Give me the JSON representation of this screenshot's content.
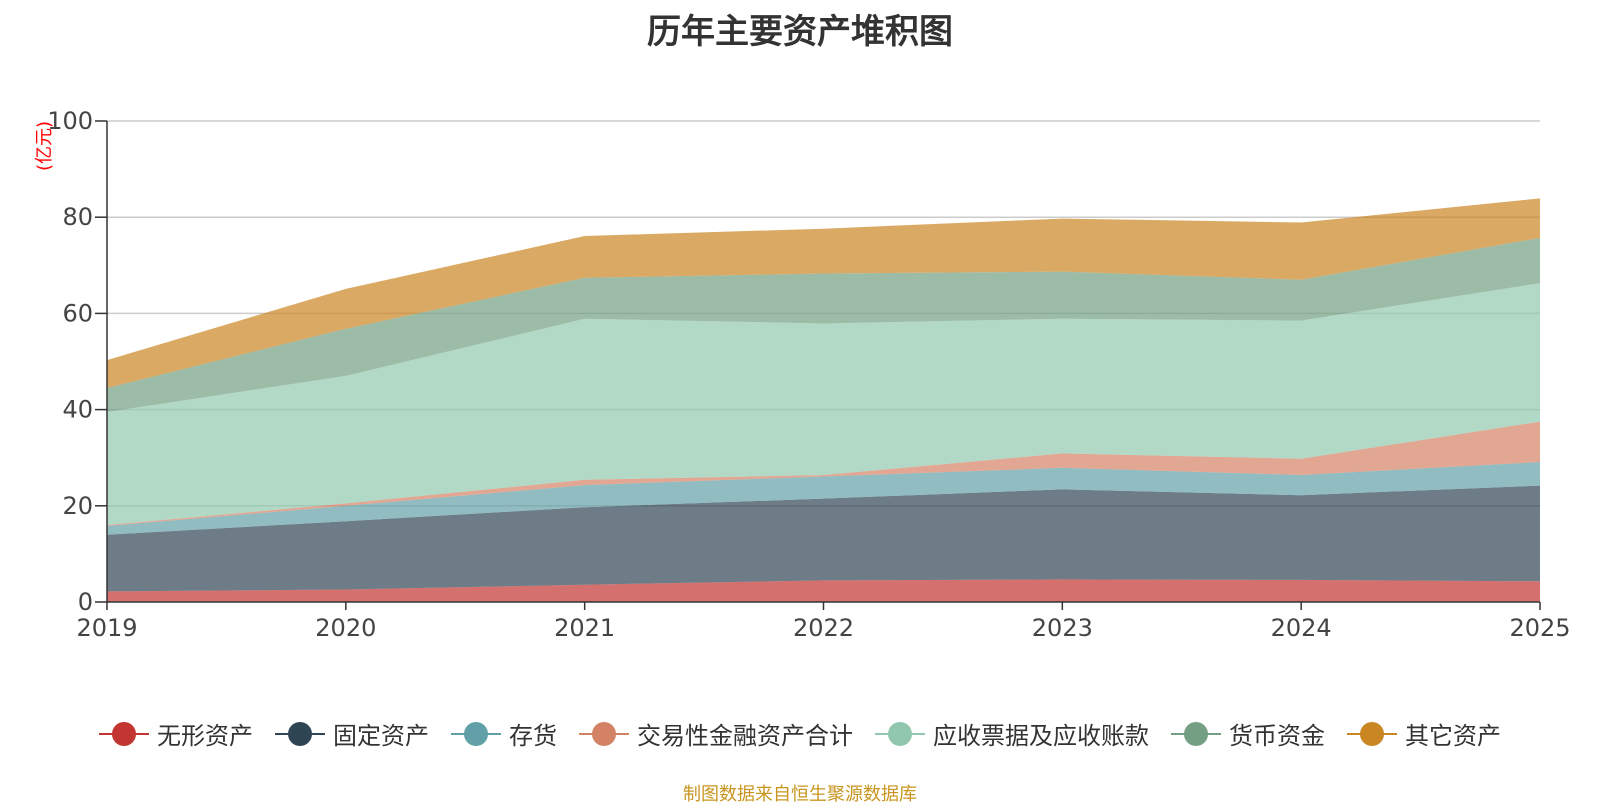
{
  "chart_data": {
    "type": "area",
    "stacked": true,
    "title": "历年主要资产堆积图",
    "unit": "(亿元)",
    "x": [
      "2019",
      "2020",
      "2021",
      "2022",
      "2023",
      "2024",
      "2025"
    ],
    "ylim": [
      0,
      100
    ],
    "yticks": [
      0,
      20,
      40,
      60,
      80,
      100
    ],
    "grid": true,
    "legend_position": "bottom",
    "series": [
      {
        "name": "无形资产",
        "color": "#c23531",
        "values": [
          2.2,
          2.6,
          3.6,
          4.5,
          4.7,
          4.6,
          4.3
        ]
      },
      {
        "name": "固定资产",
        "color": "#2f4554",
        "values": [
          11.8,
          14.2,
          16.1,
          17.0,
          18.7,
          17.6,
          19.9
        ]
      },
      {
        "name": "存货",
        "color": "#61a0a8",
        "values": [
          1.8,
          3.2,
          4.6,
          4.6,
          4.5,
          4.2,
          4.9
        ]
      },
      {
        "name": "交易性金融资产合计",
        "color": "#d48265",
        "values": [
          0.2,
          0.5,
          1.1,
          0.3,
          3.0,
          3.4,
          8.4
        ]
      },
      {
        "name": "应收票据及应收账款",
        "color": "#91c7ae",
        "values": [
          23.5,
          26.5,
          33.5,
          31.5,
          28.0,
          28.7,
          28.8
        ]
      },
      {
        "name": "货币资金",
        "color": "#749f83",
        "values": [
          5.0,
          9.8,
          8.5,
          10.4,
          9.8,
          8.5,
          9.4
        ]
      },
      {
        "name": "其它资产",
        "color": "#ca8622",
        "values": [
          5.8,
          8.3,
          8.7,
          9.3,
          11.0,
          11.9,
          8.2
        ]
      }
    ]
  },
  "source_text": "制图数据来自恒生聚源数据库",
  "colors": {
    "title": "#333333",
    "unit": "#ff0000",
    "source": "#c8961e",
    "grid": "#cccccc",
    "axis": "#333333"
  }
}
